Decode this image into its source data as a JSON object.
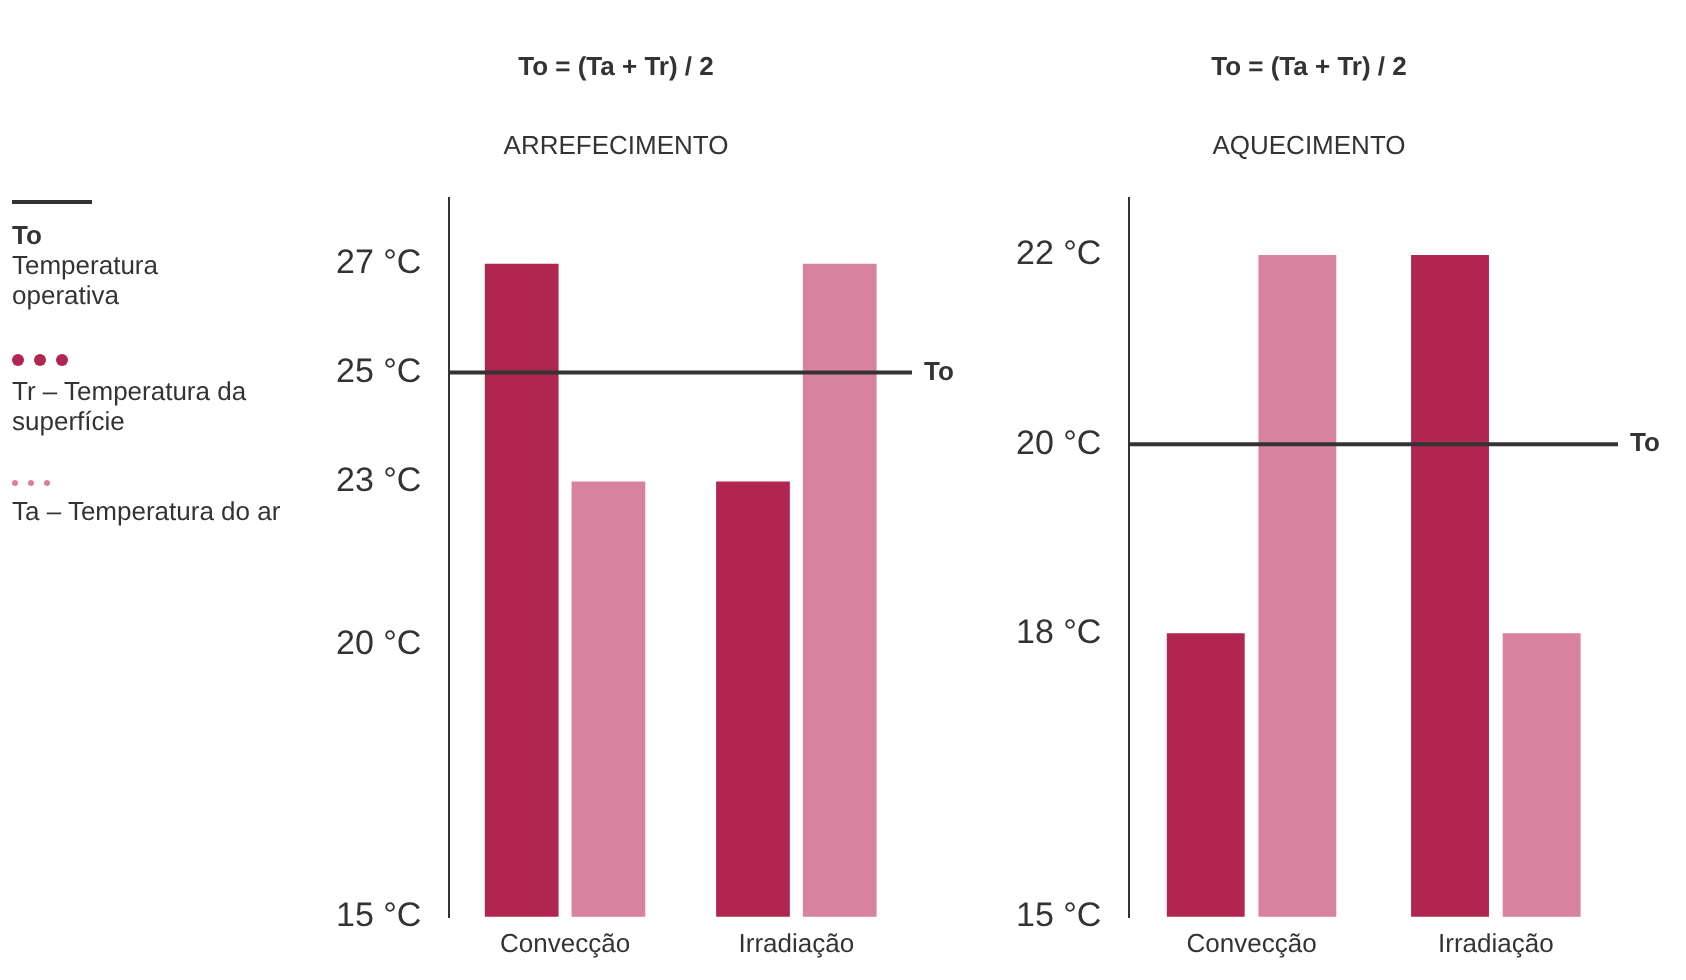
{
  "chart_data": [
    {
      "type": "bar",
      "title": "To = (Ta + Tr) / 2",
      "subtitle": "ARREFECIMENTO",
      "categories": [
        "Convecção",
        "Irradiação"
      ],
      "series": [
        {
          "name": "Tr – Temperatura da superfície",
          "color": "#b02650",
          "values": [
            27,
            23
          ]
        },
        {
          "name": "Ta – Temperatura do ar",
          "color": "#d9829f",
          "values": [
            23,
            27
          ]
        }
      ],
      "ylim": [
        15,
        28.2
      ],
      "yticks": [
        {
          "value": 15,
          "label": "15 °C"
        },
        {
          "value": 20,
          "label": "20 °C"
        },
        {
          "value": 23,
          "label": "23 °C"
        },
        {
          "value": 25,
          "label": "25 °C"
        },
        {
          "value": 27,
          "label": "27 °C"
        }
      ],
      "ref_lines": [
        {
          "axis": "y",
          "value": 25,
          "label": "To",
          "color": "#333333"
        }
      ],
      "annotations": [
        "Temperatura operativa"
      ],
      "grid": false,
      "legend": "left"
    },
    {
      "type": "bar",
      "title": "To = (Ta + Tr) / 2",
      "subtitle": "AQUECIMENTO",
      "categories": [
        "Convecção",
        "Irradiação"
      ],
      "series": [
        {
          "color": "#b02650",
          "values": [
            18,
            22
          ]
        },
        {
          "color": "#d9829f",
          "values": [
            22,
            18
          ]
        }
      ],
      "ylim": [
        15,
        22.6
      ],
      "yticks": [
        {
          "value": 15,
          "label": "15 °C"
        },
        {
          "value": 18,
          "label": "18 °C"
        },
        {
          "value": 20,
          "label": "20 °C"
        },
        {
          "value": 22,
          "label": "22 °C"
        }
      ],
      "ref_lines": [
        {
          "axis": "y",
          "value": 20,
          "label": "To",
          "color": "#333333"
        }
      ],
      "grid": false,
      "legend": false
    }
  ]
}
